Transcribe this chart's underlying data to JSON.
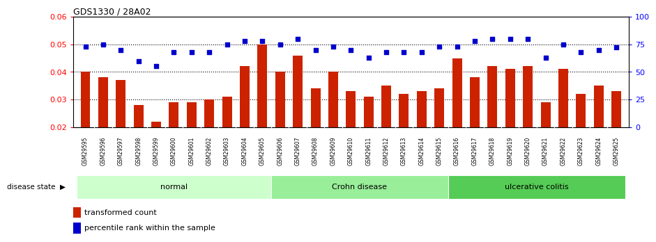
{
  "title": "GDS1330 / 28A02",
  "samples": [
    "GSM29595",
    "GSM29596",
    "GSM29597",
    "GSM29598",
    "GSM29599",
    "GSM29600",
    "GSM29601",
    "GSM29602",
    "GSM29603",
    "GSM29604",
    "GSM29605",
    "GSM29606",
    "GSM29607",
    "GSM29608",
    "GSM29609",
    "GSM29610",
    "GSM29611",
    "GSM29612",
    "GSM29613",
    "GSM29614",
    "GSM29615",
    "GSM29616",
    "GSM29617",
    "GSM29618",
    "GSM29619",
    "GSM29620",
    "GSM29621",
    "GSM29622",
    "GSM29623",
    "GSM29624",
    "GSM29625"
  ],
  "bar_values": [
    0.04,
    0.038,
    0.037,
    0.028,
    0.022,
    0.029,
    0.029,
    0.03,
    0.031,
    0.042,
    0.05,
    0.04,
    0.046,
    0.034,
    0.04,
    0.033,
    0.031,
    0.035,
    0.032,
    0.033,
    0.034,
    0.045,
    0.038,
    0.042,
    0.041,
    0.042,
    0.029,
    0.041,
    0.032,
    0.035,
    0.033
  ],
  "dot_values_pct": [
    73,
    75,
    70,
    60,
    55,
    68,
    68,
    68,
    75,
    78,
    78,
    75,
    80,
    70,
    73,
    70,
    63,
    68,
    68,
    68,
    73,
    73,
    78,
    80,
    80,
    80,
    63,
    75,
    68,
    70,
    72
  ],
  "bar_color": "#cc2200",
  "dot_color": "#0000cc",
  "ylim_left": [
    0.02,
    0.06
  ],
  "ylim_right": [
    0,
    100
  ],
  "yticks_left": [
    0.02,
    0.03,
    0.04,
    0.05,
    0.06
  ],
  "yticks_right": [
    0,
    25,
    50,
    75,
    100
  ],
  "groups": [
    {
      "label": "normal",
      "start": 0,
      "end": 11,
      "color": "#ccffcc"
    },
    {
      "label": "Crohn disease",
      "start": 11,
      "end": 21,
      "color": "#99ee99"
    },
    {
      "label": "ulcerative colitis",
      "start": 21,
      "end": 31,
      "color": "#55cc55"
    }
  ],
  "disease_state_label": "disease state",
  "legend_bar_label": "transformed count",
  "legend_dot_label": "percentile rank within the sample",
  "background_color": "#ffffff",
  "gray_band_color": "#cccccc",
  "plot_bg_color": "#ffffff"
}
